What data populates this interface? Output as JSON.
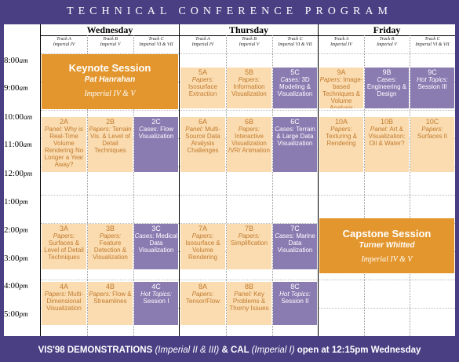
{
  "title": "TECHNICAL CONFERENCE PROGRAM",
  "days": [
    "Wednesday",
    "Thursday",
    "Friday"
  ],
  "tracks": {
    "a": [
      "Track A",
      "Imperial IV"
    ],
    "b": [
      "Track B",
      "Imperial V"
    ],
    "c": [
      "Track C",
      "Imperial VI & VII"
    ]
  },
  "times": [
    [
      "8:00",
      "am"
    ],
    [
      "9:00",
      "am"
    ],
    [
      "10:00",
      "am"
    ],
    [
      "11:00",
      "am"
    ],
    [
      "12:00",
      "pm"
    ],
    [
      "1:00",
      "pm"
    ],
    [
      "2:00",
      "pm"
    ],
    [
      "3:00",
      "pm"
    ],
    [
      "4:00",
      "pm"
    ],
    [
      "5:00",
      "pm"
    ]
  ],
  "keynote": {
    "title": "Keynote Session",
    "speaker": "Pat Hanrahan",
    "room": "Imperial IV & V"
  },
  "capstone": {
    "title": "Capstone Session",
    "speaker": "Turner Whitted",
    "room": "Imperial IV & V"
  },
  "sessions": {
    "s2a": {
      "code": "2A",
      "kind": "Panel:",
      "text": "Why is Real-Time Volume Rendering No Longer a Year Away?"
    },
    "s2b": {
      "code": "2B",
      "kind": "Papers:",
      "text": "Terrain Vis. & Level of Detail Techniques"
    },
    "s2c": {
      "code": "2C",
      "kind": "Cases:",
      "text": "Flow Visualization"
    },
    "s3a": {
      "code": "3A",
      "kind": "Papers:",
      "text": "Surfaces & Level of Detail Techniques"
    },
    "s3b": {
      "code": "3B",
      "kind": "Papers:",
      "text": "Feature Detection & Visualization"
    },
    "s3c": {
      "code": "3C",
      "kind": "Cases:",
      "text": "Medical Data Visualization"
    },
    "s4a": {
      "code": "4A",
      "kind": "Papers:",
      "text": "Multi-Dimensional Visualization"
    },
    "s4b": {
      "code": "4B",
      "kind": "Papers:",
      "text": "Flow & Streamlines"
    },
    "s4c": {
      "code": "4C",
      "kind": "Hot Topics:",
      "text": "Session I"
    },
    "s5a": {
      "code": "5A",
      "kind": "Papers:",
      "text": "Isosurface Extraction"
    },
    "s5b": {
      "code": "5B",
      "kind": "Papers:",
      "text": "Information Visualization"
    },
    "s5c": {
      "code": "5C",
      "kind": "Cases:",
      "text": "3D Modeling & Visualization"
    },
    "s6a": {
      "code": "6A",
      "kind": "Panel:",
      "text": "Multi-Source Data Analysis Challenges"
    },
    "s6b": {
      "code": "6B",
      "kind": "Papers:",
      "text": "Interactive Visualization /VR/ Animation"
    },
    "s6c": {
      "code": "6C",
      "kind": "Cases:",
      "text": "Terrain & Large Data Visualization"
    },
    "s7a": {
      "code": "7A",
      "kind": "Papers:",
      "text": "Isosurface & Volume Rendering"
    },
    "s7b": {
      "code": "7B",
      "kind": "Papers:",
      "text": "Simplification"
    },
    "s7c": {
      "code": "7C",
      "kind": "Cases:",
      "text": "Marine Data Visualization"
    },
    "s8a": {
      "code": "8A",
      "kind": "Papers:",
      "text": "Tensor/Flow"
    },
    "s8b": {
      "code": "8B",
      "kind": "Panel:",
      "text": "Key Problems & Thorny Issues"
    },
    "s8c": {
      "code": "8C",
      "kind": "Hot Topics:",
      "text": "Session II"
    },
    "s9a": {
      "code": "9A",
      "kind": "Papers:",
      "text": "Image-based Techniques & Volume Analysis"
    },
    "s9b": {
      "code": "9B",
      "kind": "Cases:",
      "text": "Engineering & Design"
    },
    "s9c": {
      "code": "9C",
      "kind": "Hot Topics:",
      "text": "Session III"
    },
    "s10a": {
      "code": "10A",
      "kind": "Papers:",
      "text": "Texturing & Rendering"
    },
    "s10b": {
      "code": "10B",
      "kind": "Panel:",
      "text": "Art & Visualization: Oil & Water?"
    },
    "s10c": {
      "code": "10C",
      "kind": "Papers:",
      "text": "Surfaces II"
    }
  },
  "footer": {
    "part1": "VIS'98 DEMONSTRATIONS",
    "part2": "(Imperial II & III)",
    "part3": "& CAL",
    "part4": "(Imperial I)",
    "part5": "open at 12:15pm Wednesday"
  },
  "colors": {
    "background": "#4b3f84",
    "papers": "#fbdcb0",
    "keynote": "#e3962d",
    "cases": "#8a7bb1"
  }
}
